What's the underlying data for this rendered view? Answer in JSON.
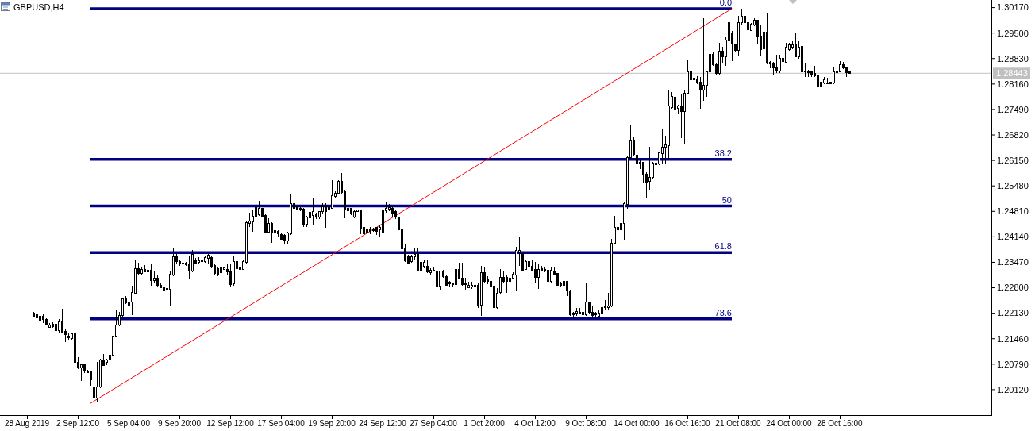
{
  "chart_data": {
    "type": "candlestick",
    "title": "GBPUSD,H4",
    "categories": [
      "28 Aug 2019",
      null,
      null,
      null,
      null,
      null,
      null,
      null,
      null,
      null,
      null,
      null,
      null,
      null,
      null,
      null,
      "2 Sep 12:00",
      null,
      null,
      null,
      null,
      null,
      null,
      null,
      null,
      null,
      null,
      null,
      null,
      null,
      null,
      null,
      "5 Sep 04:00",
      null,
      null,
      null,
      null,
      null,
      null,
      null,
      null,
      null,
      null,
      null,
      null,
      null,
      null,
      null,
      "9 Sep 20:00",
      null,
      null,
      null,
      null,
      null,
      null,
      null,
      null,
      null,
      null,
      null,
      null,
      null,
      null,
      null,
      "12 Sep 12:00",
      null,
      null,
      null,
      null,
      null,
      null,
      null,
      null,
      null,
      null,
      null,
      null,
      null,
      null,
      null,
      "17 Sep 04:00",
      null,
      null,
      null,
      null,
      null,
      null,
      null,
      null,
      null,
      null,
      null,
      null,
      null,
      null,
      null,
      "19 Sep 20:00",
      null,
      null,
      null,
      null,
      null,
      null,
      null,
      null,
      null,
      null,
      null,
      null,
      null,
      null,
      null,
      "24 Sep 12:00",
      null,
      null,
      null,
      null,
      null,
      null,
      null,
      null,
      null,
      null,
      null,
      null,
      null,
      null,
      null,
      "27 Sep 04:00",
      null,
      null,
      null,
      null,
      null,
      null,
      null,
      null,
      null,
      null,
      null,
      null,
      null,
      null,
      null,
      "1 Oct 20:00",
      null,
      null,
      null,
      null,
      null,
      null,
      null,
      null,
      null,
      null,
      null,
      null,
      null,
      null,
      null,
      "4 Oct 12:00",
      null,
      null,
      null,
      null,
      null,
      null,
      null,
      null,
      null,
      null,
      null,
      null,
      null,
      null,
      null,
      "9 Oct 08:00",
      null,
      null,
      null,
      null,
      null,
      null,
      null,
      null,
      null,
      null,
      null,
      null,
      null,
      null,
      null,
      "14 Oct 00:00",
      null,
      null,
      null,
      null,
      null,
      null,
      null,
      null,
      null,
      null,
      null,
      null,
      null,
      null,
      null,
      "16 Oct 16:00",
      null,
      null,
      null,
      null,
      null,
      null,
      null,
      null,
      null,
      null,
      null,
      null,
      null,
      null,
      null,
      "21 Oct 08:00",
      null,
      null,
      null,
      null,
      null,
      null,
      null,
      null,
      null,
      null,
      null,
      null,
      null,
      null,
      null,
      "24 Oct 00:00",
      null,
      null,
      null,
      null,
      null,
      null,
      null,
      null,
      null,
      null,
      null,
      null,
      null,
      null,
      null,
      "28 Oct 16:00",
      null,
      null,
      null,
      null,
      null,
      null,
      null,
      null,
      null,
      null,
      null,
      null,
      null,
      null,
      null,
      null,
      null,
      null,
      null,
      null,
      null,
      null,
      null,
      null,
      null,
      null,
      null,
      null,
      null,
      null,
      null,
      null,
      null,
      null,
      null,
      null,
      null,
      null,
      null,
      null,
      null,
      null,
      null,
      null,
      null,
      null
    ],
    "ohlc": [
      null,
      null,
      [
        1.2214,
        1.2216,
        1.2202,
        1.2204
      ],
      [
        1.2209,
        1.2213,
        1.2194,
        1.2201
      ],
      [
        1.2194,
        1.2234,
        1.2181,
        1.2204
      ],
      [
        1.2204,
        1.2213,
        1.2188,
        1.2197
      ],
      [
        1.2197,
        1.2199,
        1.218,
        1.2181
      ],
      [
        1.2176,
        1.2188,
        1.2174,
        1.2183
      ],
      [
        1.2185,
        1.219,
        1.2174,
        1.2178
      ],
      [
        1.2184,
        1.2188,
        1.2164,
        1.2167
      ],
      [
        1.2167,
        1.2197,
        1.216,
        1.219
      ],
      [
        1.219,
        1.2225,
        1.2162,
        1.2164
      ],
      [
        1.2165,
        1.2171,
        1.2138,
        1.2157
      ],
      [
        1.2152,
        1.216,
        1.2143,
        1.2148
      ],
      [
        1.2147,
        1.216,
        1.2143,
        1.2158
      ],
      [
        1.2158,
        1.2174,
        1.2074,
        1.2084
      ],
      [
        1.2084,
        1.2098,
        1.2067,
        1.2069
      ],
      [
        1.2069,
        1.2077,
        1.2034,
        1.2077
      ],
      [
        1.2077,
        1.2077,
        1.2056,
        1.206
      ],
      [
        1.206,
        1.2063,
        1.2055,
        1.2056
      ],
      [
        1.2058,
        1.2058,
        1.2023,
        1.2037
      ],
      [
        1.202,
        1.2039,
        1.1957,
        1.199
      ],
      [
        1.199,
        1.2084,
        1.198,
        1.202
      ],
      [
        1.2019,
        1.2094,
        1.2015,
        1.2091
      ],
      [
        1.2091,
        1.2105,
        1.2074,
        1.2076
      ],
      [
        1.2083,
        1.2094,
        1.2077,
        1.209
      ],
      [
        1.209,
        1.2112,
        1.2088,
        1.2102
      ],
      [
        1.2102,
        1.2153,
        1.21,
        1.2152
      ],
      [
        1.2152,
        1.2221,
        1.215,
        1.2181
      ],
      [
        1.2181,
        1.2216,
        1.2178,
        1.2208
      ],
      [
        1.2208,
        1.2254,
        1.2204,
        1.2251
      ],
      [
        1.2251,
        1.2258,
        1.2237,
        1.2241
      ],
      [
        1.2235,
        1.2246,
        1.223,
        1.2242
      ],
      [
        1.2242,
        1.2286,
        1.2209,
        1.2268
      ],
      [
        1.2266,
        1.2354,
        1.2264,
        1.2331
      ],
      [
        1.2331,
        1.2345,
        1.2313,
        1.2317
      ],
      [
        1.2317,
        1.2334,
        1.2313,
        1.2329
      ],
      [
        1.2329,
        1.234,
        1.2321,
        1.2322
      ],
      [
        1.2322,
        1.2336,
        1.2319,
        1.2327
      ],
      [
        1.2327,
        1.2343,
        1.2286,
        1.2298
      ],
      [
        1.2298,
        1.2324,
        1.2293,
        1.2306
      ],
      [
        1.2306,
        1.2313,
        1.2282,
        1.2286
      ],
      [
        1.2287,
        1.2293,
        1.2279,
        1.228
      ],
      [
        1.2271,
        1.2286,
        1.2269,
        1.228
      ],
      [
        1.2279,
        1.2286,
        1.2273,
        1.2276
      ],
      [
        1.2276,
        1.2322,
        1.2232,
        1.2315
      ],
      [
        1.2313,
        1.2386,
        1.231,
        1.2362
      ],
      [
        1.2362,
        1.2369,
        1.2343,
        1.2348
      ],
      [
        1.2348,
        1.2355,
        1.2338,
        1.2343
      ],
      [
        1.2345,
        1.2348,
        1.2338,
        1.2343
      ],
      [
        1.2344,
        1.2348,
        1.2338,
        1.2341
      ],
      [
        1.2341,
        1.2362,
        1.2305,
        1.2324
      ],
      [
        1.2324,
        1.238,
        1.2321,
        1.2368
      ],
      [
        1.2352,
        1.2359,
        1.2342,
        1.2345
      ],
      [
        1.2347,
        1.2361,
        1.2342,
        1.2351
      ],
      [
        1.235,
        1.2361,
        1.2345,
        1.2353
      ],
      [
        1.235,
        1.2364,
        1.2345,
        1.2359
      ],
      [
        1.2357,
        1.2368,
        1.2342,
        1.2366
      ],
      [
        1.2359,
        1.2362,
        1.2332,
        1.2335
      ],
      [
        1.2338,
        1.2342,
        1.2314,
        1.2317
      ],
      [
        1.2331,
        1.2335,
        1.231,
        1.2314
      ],
      [
        1.2319,
        1.2336,
        1.2317,
        1.2333
      ],
      [
        1.2329,
        1.2336,
        1.2328,
        1.2333
      ],
      [
        1.2329,
        1.2342,
        1.2314,
        1.2322
      ],
      [
        1.2324,
        1.2342,
        1.2282,
        1.2289
      ],
      [
        1.2291,
        1.2362,
        1.2286,
        1.235
      ],
      [
        1.235,
        1.2368,
        1.2329,
        1.2331
      ],
      [
        1.2333,
        1.2342,
        1.2326,
        1.2328
      ],
      [
        1.2329,
        1.2352,
        1.2328,
        1.2348
      ],
      [
        1.2347,
        1.2454,
        1.2343,
        1.2452
      ],
      [
        1.245,
        1.2477,
        1.2439,
        1.2455
      ],
      [
        1.2453,
        1.2484,
        1.2427,
        1.2467
      ],
      [
        1.2465,
        1.2507,
        1.2463,
        1.2491
      ],
      [
        1.2472,
        1.2509,
        1.247,
        1.2489
      ],
      [
        1.2489,
        1.2491,
        1.2467,
        1.2468
      ],
      [
        1.247,
        1.2474,
        1.2425,
        1.2427
      ],
      [
        1.2427,
        1.2463,
        1.2424,
        1.2449
      ],
      [
        1.2449,
        1.2453,
        1.2399,
        1.2425
      ],
      [
        1.2425,
        1.2433,
        1.2417,
        1.2431
      ],
      [
        1.2429,
        1.2432,
        1.2415,
        1.2423
      ],
      [
        1.242,
        1.2425,
        1.2406,
        1.2408
      ],
      [
        1.2418,
        1.2422,
        1.2394,
        1.2403
      ],
      [
        1.2403,
        1.2427,
        1.2394,
        1.2424
      ],
      [
        1.2422,
        1.2526,
        1.2418,
        1.2502
      ],
      [
        1.2502,
        1.2505,
        1.2486,
        1.2488
      ],
      [
        1.2493,
        1.2496,
        1.2484,
        1.2486
      ],
      [
        1.2489,
        1.2493,
        1.2482,
        1.2486
      ],
      [
        1.2486,
        1.2489,
        1.2439,
        1.2447
      ],
      [
        1.2447,
        1.247,
        1.244,
        1.2465
      ],
      [
        1.2463,
        1.2491,
        1.2453,
        1.2479
      ],
      [
        1.247,
        1.2514,
        1.2446,
        1.2481
      ],
      [
        1.2472,
        1.2477,
        1.2461,
        1.2467
      ],
      [
        1.2465,
        1.2482,
        1.2461,
        1.2481
      ],
      [
        1.2481,
        1.2502,
        1.2475,
        1.2493
      ],
      [
        1.2498,
        1.2502,
        1.2438,
        1.2481
      ],
      [
        1.2484,
        1.25,
        1.2482,
        1.2491
      ],
      [
        1.2489,
        1.2563,
        1.2488,
        1.2523
      ],
      [
        1.2521,
        1.2533,
        1.2517,
        1.2529
      ],
      [
        1.2528,
        1.2563,
        1.2526,
        1.2559
      ],
      [
        1.2559,
        1.2582,
        1.2528,
        1.2531
      ],
      [
        1.2533,
        1.2536,
        1.2463,
        1.2484
      ],
      [
        1.2488,
        1.2512,
        1.2461,
        1.2482
      ],
      [
        1.2488,
        1.2491,
        1.2472,
        1.2474
      ],
      [
        1.2465,
        1.2486,
        1.2463,
        1.2481
      ],
      [
        1.2481,
        1.2486,
        1.2479,
        1.2484
      ],
      [
        1.2484,
        1.2486,
        1.2422,
        1.2436
      ],
      [
        1.2438,
        1.244,
        1.2417,
        1.2422
      ],
      [
        1.2424,
        1.2443,
        1.2418,
        1.2432
      ],
      [
        1.2435,
        1.244,
        1.2422,
        1.2429
      ],
      [
        1.2435,
        1.2438,
        1.2427,
        1.2431
      ],
      [
        1.2438,
        1.244,
        1.2418,
        1.2429
      ],
      [
        1.2432,
        1.2446,
        1.2415,
        1.2439
      ],
      [
        1.2427,
        1.2491,
        1.2425,
        1.2484
      ],
      [
        1.2482,
        1.2505,
        1.2477,
        1.2489
      ],
      [
        1.2487,
        1.25,
        1.2482,
        1.2491
      ],
      [
        1.2489,
        1.2496,
        1.2468,
        1.2477
      ],
      [
        1.2481,
        1.2484,
        1.2461,
        1.2465
      ],
      [
        1.2465,
        1.2468,
        1.2431,
        1.2433
      ],
      [
        1.2433,
        1.2435,
        1.2376,
        1.2383
      ],
      [
        1.2383,
        1.2394,
        1.2348,
        1.2352
      ],
      [
        1.2364,
        1.2366,
        1.2343,
        1.2345
      ],
      [
        1.2348,
        1.2366,
        1.2345,
        1.2361
      ],
      [
        1.2361,
        1.2383,
        1.2355,
        1.2368
      ],
      [
        1.2368,
        1.2383,
        1.2324,
        1.2326
      ],
      [
        1.2326,
        1.2355,
        1.2301,
        1.2346
      ],
      [
        1.2336,
        1.2355,
        1.2331,
        1.2346
      ],
      [
        1.2336,
        1.2355,
        1.2319,
        1.2322
      ],
      [
        1.232,
        1.2331,
        1.2313,
        1.2327
      ],
      [
        1.2327,
        1.2333,
        1.2322,
        1.2325
      ],
      [
        1.2324,
        1.2326,
        1.227,
        1.2284
      ],
      [
        1.2284,
        1.2326,
        1.2275,
        1.2323
      ],
      [
        1.2324,
        1.2327,
        1.2307,
        1.231
      ],
      [
        1.231,
        1.2313,
        1.2285,
        1.2286
      ],
      [
        1.2294,
        1.2298,
        1.2284,
        1.2291
      ],
      [
        1.2291,
        1.2294,
        1.2282,
        1.2289
      ],
      [
        1.2289,
        1.2331,
        1.2287,
        1.2329
      ],
      [
        1.2329,
        1.2345,
        1.2301,
        1.2305
      ],
      [
        1.2305,
        1.2346,
        1.2286,
        1.2289
      ],
      [
        1.2291,
        1.2307,
        1.2275,
        1.2289
      ],
      [
        1.228,
        1.2296,
        1.2279,
        1.2286
      ],
      [
        1.2282,
        1.2296,
        1.2278,
        1.2287
      ],
      [
        1.2282,
        1.2307,
        1.2279,
        1.2287
      ],
      [
        1.2286,
        1.2293,
        1.2227,
        1.2235
      ],
      [
        1.2235,
        1.2338,
        1.2206,
        1.2319
      ],
      [
        1.2319,
        1.2334,
        1.2291,
        1.2296
      ],
      [
        1.2303,
        1.231,
        1.2289,
        1.2296
      ],
      [
        1.2296,
        1.2298,
        1.227,
        1.2282
      ],
      [
        1.2284,
        1.2287,
        1.2227,
        1.2228
      ],
      [
        1.2228,
        1.2279,
        1.2224,
        1.2265
      ],
      [
        1.2267,
        1.2329,
        1.2264,
        1.2308
      ],
      [
        1.2308,
        1.2324,
        1.2294,
        1.2296
      ],
      [
        1.2307,
        1.2313,
        1.2266,
        1.2296
      ],
      [
        1.2296,
        1.231,
        1.2293,
        1.2305
      ],
      [
        1.2305,
        1.232,
        1.2301,
        1.2315
      ],
      [
        1.2313,
        1.2387,
        1.2273,
        1.2378
      ],
      [
        1.2371,
        1.2412,
        1.2338,
        1.2378
      ],
      [
        1.2368,
        1.2371,
        1.2324,
        1.2326
      ],
      [
        1.2329,
        1.2352,
        1.2327,
        1.2348
      ],
      [
        1.2348,
        1.2355,
        1.2333,
        1.2334
      ],
      [
        1.2336,
        1.2352,
        1.2326,
        1.2327
      ],
      [
        1.2329,
        1.2348,
        1.2294,
        1.2308
      ],
      [
        1.2308,
        1.2341,
        1.2278,
        1.2329
      ],
      [
        1.233,
        1.2338,
        1.2324,
        1.2327
      ],
      [
        1.2329,
        1.2333,
        1.232,
        1.2324
      ],
      [
        1.2327,
        1.2331,
        1.2287,
        1.2296
      ],
      [
        1.2296,
        1.2334,
        1.2294,
        1.2326
      ],
      [
        1.2324,
        1.2334,
        1.2313,
        1.2315
      ],
      [
        1.2317,
        1.2319,
        1.2285,
        1.2286
      ],
      [
        1.2291,
        1.2296,
        1.2284,
        1.2287
      ],
      [
        1.2287,
        1.23,
        1.2284,
        1.2296
      ],
      [
        1.2296,
        1.2298,
        1.2258,
        1.2272
      ],
      [
        1.2272,
        1.2275,
        1.2206,
        1.2209
      ],
      [
        1.2214,
        1.2216,
        1.2202,
        1.2209
      ],
      [
        1.2213,
        1.2227,
        1.2206,
        1.2218
      ],
      [
        1.2216,
        1.2227,
        1.2211,
        1.2214
      ],
      [
        1.2216,
        1.2217,
        1.2208,
        1.2209
      ],
      [
        1.2209,
        1.2291,
        1.2206,
        1.2242
      ],
      [
        1.2242,
        1.2244,
        1.2213,
        1.2216
      ],
      [
        1.2216,
        1.2234,
        1.2202,
        1.2206
      ],
      [
        1.2213,
        1.2216,
        1.2203,
        1.2209
      ],
      [
        1.2204,
        1.2223,
        1.2201,
        1.2213
      ],
      [
        1.2213,
        1.223,
        1.2209,
        1.2227
      ],
      [
        1.2227,
        1.2248,
        1.222,
        1.223
      ],
      [
        1.2227,
        1.2266,
        1.2223,
        1.2232
      ],
      [
        1.2232,
        1.2408,
        1.223,
        1.2396
      ],
      [
        1.2397,
        1.247,
        1.2393,
        1.2439
      ],
      [
        1.2439,
        1.2453,
        1.2425,
        1.2433
      ],
      [
        1.2433,
        1.2459,
        1.2425,
        1.245
      ],
      [
        1.2449,
        1.2505,
        1.2407,
        1.2501
      ],
      [
        1.25,
        1.2627,
        1.2487,
        1.2622
      ],
      [
        1.2622,
        1.2707,
        1.262,
        1.2667
      ],
      [
        1.2667,
        1.2675,
        1.2628,
        1.2631
      ],
      [
        1.2628,
        1.263,
        1.2604,
        1.2606
      ],
      [
        1.2611,
        1.2616,
        1.2592,
        1.2606
      ],
      [
        1.2609,
        1.2611,
        1.2557,
        1.2579
      ],
      [
        1.2579,
        1.2583,
        1.2517,
        1.2558
      ],
      [
        1.256,
        1.2651,
        1.2536,
        1.257
      ],
      [
        1.257,
        1.2611,
        1.2567,
        1.2607
      ],
      [
        1.2604,
        1.2615,
        1.26,
        1.2608
      ],
      [
        1.2606,
        1.2639,
        1.2602,
        1.2635
      ],
      [
        1.2634,
        1.2698,
        1.2604,
        1.265
      ],
      [
        1.265,
        1.2679,
        1.2604,
        1.2656
      ],
      [
        1.2654,
        1.2801,
        1.262,
        1.2758
      ],
      [
        1.2755,
        1.2794,
        1.2751,
        1.2783
      ],
      [
        1.2782,
        1.2792,
        1.2746,
        1.2749
      ],
      [
        1.2751,
        1.2762,
        1.2738,
        1.2758
      ],
      [
        1.2758,
        1.279,
        1.2674,
        1.2744
      ],
      [
        1.2744,
        1.2801,
        1.2656,
        1.2792
      ],
      [
        1.2792,
        1.2879,
        1.279,
        1.2848
      ],
      [
        1.2848,
        1.287,
        1.2825,
        1.2827
      ],
      [
        1.2832,
        1.2839,
        1.2804,
        1.2827
      ],
      [
        1.283,
        1.2837,
        1.2815,
        1.282
      ],
      [
        1.282,
        1.2834,
        1.275,
        1.2801
      ],
      [
        1.2801,
        1.299,
        1.2771,
        1.2813
      ],
      [
        1.2813,
        1.2852,
        1.2783,
        1.2849
      ],
      [
        1.2849,
        1.2897,
        1.2846,
        1.2893
      ],
      [
        1.2893,
        1.29,
        1.2863,
        1.2867
      ],
      [
        1.2867,
        1.287,
        1.2841,
        1.2844
      ],
      [
        1.2844,
        1.2925,
        1.2841,
        1.2902
      ],
      [
        1.2902,
        1.2913,
        1.287,
        1.2888
      ],
      [
        1.2888,
        1.294,
        1.2863,
        1.2931
      ],
      [
        1.2929,
        1.2985,
        1.2927,
        1.2978
      ],
      [
        1.295,
        1.2955,
        1.2876,
        1.2922
      ],
      [
        1.292,
        1.2922,
        1.2902,
        1.2904
      ],
      [
        1.2905,
        1.2995,
        1.2888,
        1.2978
      ],
      [
        1.2978,
        1.3013,
        1.2971,
        1.2994
      ],
      [
        1.2994,
        1.301,
        1.2961,
        1.2978
      ],
      [
        1.2978,
        1.298,
        1.2957,
        1.2959
      ],
      [
        1.2957,
        1.2976,
        1.2955,
        1.2973
      ],
      [
        1.2971,
        1.2989,
        1.2968,
        1.2983
      ],
      [
        1.2983,
        1.2985,
        1.2922,
        1.2941
      ],
      [
        1.2941,
        1.2971,
        1.289,
        1.2906
      ],
      [
        1.2908,
        1.2964,
        1.2905,
        1.2952
      ],
      [
        1.2952,
        1.3002,
        1.2867,
        1.287
      ],
      [
        1.2873,
        1.2877,
        1.2858,
        1.2869
      ],
      [
        1.287,
        1.2874,
        1.2841,
        1.2858
      ],
      [
        1.286,
        1.2893,
        1.2844,
        1.2851
      ],
      [
        1.2851,
        1.2893,
        1.2844,
        1.2883
      ],
      [
        1.2883,
        1.2902,
        1.2848,
        1.2876
      ],
      [
        1.2874,
        1.2925,
        1.2869,
        1.2913
      ],
      [
        1.2906,
        1.2925,
        1.2904,
        1.2918
      ],
      [
        1.2913,
        1.2929,
        1.2908,
        1.2919
      ],
      [
        1.2918,
        1.2952,
        1.2886,
        1.2888
      ],
      [
        1.2888,
        1.2929,
        1.2883,
        1.2913
      ],
      [
        1.2915,
        1.2916,
        1.2787,
        1.2849
      ],
      [
        1.2851,
        1.2869,
        1.2835,
        1.2848
      ],
      [
        1.2849,
        1.2853,
        1.2835,
        1.2846
      ],
      [
        1.2848,
        1.2851,
        1.2834,
        1.2841
      ],
      [
        1.2844,
        1.2863,
        1.2834,
        1.2837
      ],
      [
        1.2839,
        1.2842,
        1.2808,
        1.2811
      ],
      [
        1.2811,
        1.2835,
        1.2804,
        1.282
      ],
      [
        1.2818,
        1.2835,
        1.2816,
        1.2827
      ],
      [
        1.2818,
        1.2832,
        1.2815,
        1.2816
      ],
      [
        1.282,
        1.2822,
        1.2815,
        1.2816
      ],
      [
        1.2818,
        1.286,
        1.2816,
        1.2849
      ],
      [
        1.2846,
        1.286,
        1.2828,
        1.2851
      ],
      [
        1.2849,
        1.2877,
        1.2846,
        1.2867
      ],
      [
        1.2867,
        1.2874,
        1.2855,
        1.2858
      ],
      [
        1.286,
        1.2862,
        1.2835,
        1.2846
      ],
      [
        1.2848,
        1.2849,
        1.2843,
        1.2844
      ],
      null,
      null,
      null,
      null,
      null,
      null,
      null,
      null,
      null,
      null,
      null,
      null,
      null,
      null,
      null,
      null,
      null,
      null,
      null,
      null,
      null,
      null,
      null,
      null,
      null,
      null,
      null,
      null,
      null,
      null,
      null,
      null,
      null,
      null,
      null,
      null,
      null,
      null,
      null,
      null,
      null,
      null,
      null
    ],
    "series": [
      {
        "type": "line",
        "color": "#ff0000",
        "values": [
          null,
          null,
          null,
          null,
          null,
          null,
          null,
          null,
          null,
          null,
          null,
          null,
          null,
          null,
          null,
          null,
          null,
          null,
          null,
          null,
          1.1976,
          null,
          null,
          null,
          null,
          null,
          null,
          null,
          null,
          null,
          null,
          null,
          null,
          null,
          null,
          null,
          null,
          null,
          null,
          null,
          null,
          null,
          null,
          null,
          null,
          null,
          null,
          null,
          null,
          null,
          null,
          null,
          null,
          null,
          null,
          null,
          null,
          null,
          null,
          null,
          null,
          null,
          null,
          null,
          null,
          null,
          null,
          null,
          null,
          null,
          null,
          null,
          null,
          null,
          null,
          null,
          null,
          null,
          null,
          null,
          null,
          null,
          null,
          null,
          null,
          null,
          null,
          null,
          null,
          null,
          null,
          null,
          null,
          null,
          null,
          null,
          null,
          null,
          null,
          null,
          null,
          null,
          null,
          null,
          null,
          null,
          null,
          null,
          null,
          null,
          null,
          null,
          null,
          null,
          null,
          null,
          null,
          null,
          null,
          null,
          null,
          null,
          null,
          null,
          null,
          null,
          null,
          null,
          null,
          null,
          null,
          null,
          null,
          null,
          null,
          null,
          null,
          null,
          null,
          null,
          null,
          null,
          null,
          null,
          null,
          null,
          null,
          null,
          null,
          null,
          null,
          null,
          null,
          null,
          null,
          null,
          null,
          null,
          null,
          null,
          null,
          null,
          null,
          null,
          null,
          null,
          null,
          null,
          null,
          null,
          null,
          null,
          null,
          null,
          null,
          null,
          null,
          null,
          null,
          null,
          null,
          null,
          null,
          null,
          null,
          null,
          null,
          null,
          null,
          null,
          null,
          null,
          null,
          null,
          null,
          null,
          null,
          null,
          null,
          null,
          null,
          null,
          null,
          null,
          null,
          null,
          null,
          null,
          null,
          null,
          null,
          null,
          null,
          null,
          null,
          null,
          null,
          null,
          null,
          null,
          null,
          null,
          1.3014,
          null,
          null,
          null,
          null,
          null,
          null,
          null,
          null,
          null,
          null,
          null,
          null,
          null,
          null,
          null,
          null,
          null,
          null,
          null,
          null,
          null,
          null,
          null,
          null,
          null,
          null,
          null,
          null,
          null,
          null,
          null,
          null,
          null,
          null,
          null,
          null,
          null,
          null,
          null,
          null,
          null,
          null,
          null,
          null,
          null,
          null,
          null,
          null,
          null,
          null,
          null,
          null,
          null,
          null,
          null,
          null,
          null,
          null,
          null,
          null,
          null,
          null,
          null,
          null,
          null,
          null,
          null,
          null,
          null,
          null,
          null,
          null,
          null,
          null,
          null,
          null,
          null,
          null,
          null,
          null
        ]
      }
    ],
    "ylim": [
      1.1945,
      1.3037
    ],
    "yticks": [
      {
        "value": 1.2012,
        "label": "1.20120"
      },
      {
        "value": 1.2079,
        "label": "1.20790"
      },
      {
        "value": 1.2146,
        "label": "1.21460"
      },
      {
        "value": 1.2213,
        "label": "1.22130"
      },
      {
        "value": 1.228,
        "label": "1.22800"
      },
      {
        "value": 1.2347,
        "label": "1.23470"
      },
      {
        "value": 1.2414,
        "label": "1.24140"
      },
      {
        "value": 1.2481,
        "label": "1.24810"
      },
      {
        "value": 1.2548,
        "label": "1.25480"
      },
      {
        "value": 1.2615,
        "label": "1.26150"
      },
      {
        "value": 1.2682,
        "label": "1.26820"
      },
      {
        "value": 1.2749,
        "label": "1.27490"
      },
      {
        "value": 1.2816,
        "label": "1.28160"
      },
      {
        "value": 1.2883,
        "label": "1.28830"
      },
      {
        "value": 1.295,
        "label": "1.29500"
      },
      {
        "value": 1.3017,
        "label": "1.30170"
      }
    ],
    "y2lim": [
      103.0,
      -2.2
    ],
    "ref_lines": [
      {
        "axis": "y",
        "value": 1.28443,
        "label": "1.28443",
        "color": "#c0c0c0"
      },
      {
        "axis": "y2",
        "value": 0,
        "label": "0.0",
        "color": "#000080"
      },
      {
        "axis": "y2",
        "value": 38.2,
        "label": "38.2",
        "color": "#000080"
      },
      {
        "axis": "y2",
        "value": 50,
        "label": "50",
        "color": "#000080"
      },
      {
        "axis": "y2",
        "value": 61.8,
        "label": "61.8",
        "color": "#000080"
      },
      {
        "axis": "y2",
        "value": 78.6,
        "label": "78.6",
        "color": "#000080"
      }
    ]
  }
}
